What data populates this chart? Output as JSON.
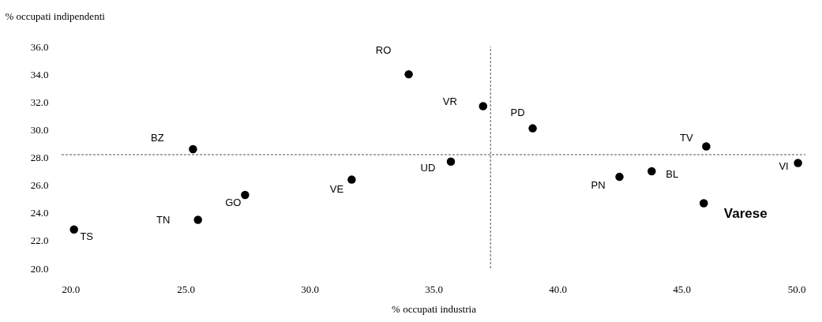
{
  "chart_data": {
    "type": "scatter",
    "xlabel": "% occupati industria",
    "ylabel": "% occupati indipendenti",
    "x": [
      20.5,
      25.3,
      25.5,
      27.4,
      31.7,
      34.0,
      37.0,
      35.7,
      39.0,
      42.5,
      43.8,
      46.0,
      45.9,
      49.7
    ],
    "series": [
      {
        "color": "#000000",
        "values": [
          22.8,
          28.6,
          23.5,
          25.3,
          26.4,
          34.0,
          31.7,
          27.7,
          30.1,
          26.6,
          27.0,
          28.8,
          24.7,
          27.6
        ]
      }
    ],
    "annotations": [
      {
        "text": "TS",
        "x": 20.5,
        "y": 22.8
      },
      {
        "text": "BZ",
        "x": 25.3,
        "y": 28.6
      },
      {
        "text": "TN",
        "x": 25.5,
        "y": 23.5
      },
      {
        "text": "GO",
        "x": 27.4,
        "y": 25.3
      },
      {
        "text": "VE",
        "x": 31.7,
        "y": 26.4
      },
      {
        "text": "RO",
        "x": 34.0,
        "y": 34.0
      },
      {
        "text": "VR",
        "x": 37.0,
        "y": 31.7
      },
      {
        "text": "UD",
        "x": 35.7,
        "y": 27.7
      },
      {
        "text": "PD",
        "x": 39.0,
        "y": 30.1
      },
      {
        "text": "PN",
        "x": 42.5,
        "y": 26.6
      },
      {
        "text": "BL",
        "x": 43.8,
        "y": 27.0
      },
      {
        "text": "TV",
        "x": 46.0,
        "y": 28.8
      },
      {
        "text": "Varese",
        "x": 45.9,
        "y": 24.7
      },
      {
        "text": "VI",
        "x": 49.7,
        "y": 27.6
      }
    ],
    "xlim": [
      20,
      50
    ],
    "ylim": [
      20,
      36
    ],
    "xticks": [
      {
        "value": 20,
        "label": "20.0"
      },
      {
        "value": 25,
        "label": "25.0"
      },
      {
        "value": 30,
        "label": "30.0"
      },
      {
        "value": 35,
        "label": "35.0"
      },
      {
        "value": 40,
        "label": "40.0"
      },
      {
        "value": 45,
        "label": "45.0"
      },
      {
        "value": 50,
        "label": "50.0"
      }
    ],
    "yticks": [
      {
        "value": 20,
        "label": "20.0"
      },
      {
        "value": 22,
        "label": "22.0"
      },
      {
        "value": 24,
        "label": "24.0"
      },
      {
        "value": 26,
        "label": "26.0"
      },
      {
        "value": 28,
        "label": "28.0"
      },
      {
        "value": 30,
        "label": "30.0"
      },
      {
        "value": 32,
        "label": "32.0"
      },
      {
        "value": 34,
        "label": "34.0"
      },
      {
        "value": 36,
        "label": "36.0"
      }
    ],
    "ref_lines": [
      {
        "axis": "y",
        "value": 28.2,
        "color": "#555555",
        "line_style": "dashed"
      },
      {
        "axis": "x",
        "value": 37.3,
        "color": "#555555",
        "line_style": "dashed"
      }
    ],
    "marker": "circle",
    "grid": false
  }
}
